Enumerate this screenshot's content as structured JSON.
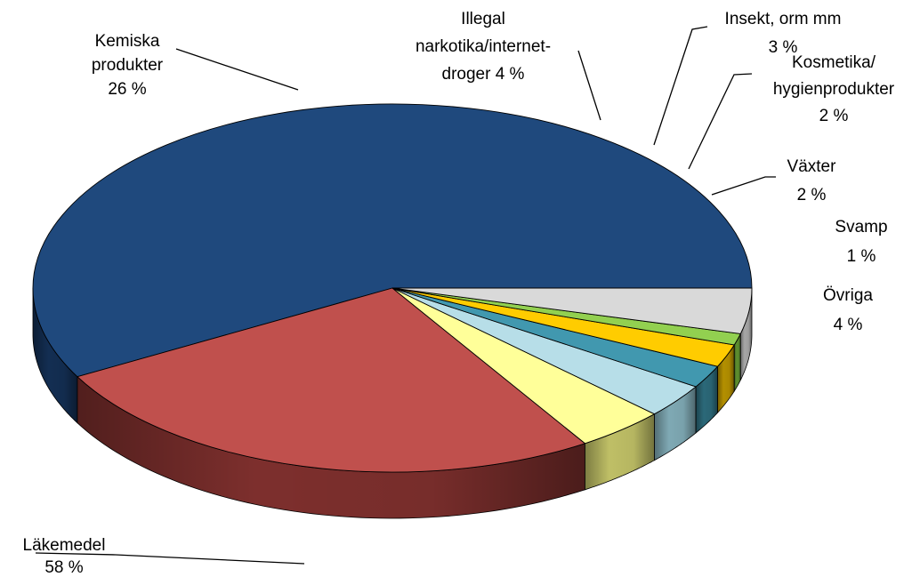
{
  "chart_data": {
    "type": "pie",
    "style": "3d",
    "start_angle": "3 o'clock",
    "direction": "counter-clockwise",
    "slices": [
      {
        "name": "Läkemedel",
        "value": 58,
        "value_label": "58 %",
        "color": "#1F497D",
        "side_color": "#132E52"
      },
      {
        "name": "Kemiska produkter",
        "value": 26,
        "value_label": "26 %",
        "color": "#C0504D",
        "side_color": "#7D2F2D"
      },
      {
        "name": "Illegal narkotika/internet-droger",
        "value": 4,
        "value_label": "4 %",
        "color": "#FFFF99",
        "side_color": "#BFBF66"
      },
      {
        "name": "Insekt, orm mm",
        "value": 3,
        "value_label": "3 %",
        "color": "#B7DEE8",
        "side_color": "#7FA9B4"
      },
      {
        "name": "Kosmetika/ hygienprodukter",
        "value": 2,
        "value_label": "2 %",
        "color": "#4198AF",
        "side_color": "#2B6878"
      },
      {
        "name": "Växter",
        "value": 2,
        "value_label": "2 %",
        "color": "#FFCC00",
        "side_color": "#B38F00"
      },
      {
        "name": "Svamp",
        "value": 1,
        "value_label": "1 %",
        "color": "#92D050",
        "side_color": "#5E8F2F"
      },
      {
        "name": "Övriga",
        "value": 4,
        "value_label": "4 %",
        "color": "#D9D9D9",
        "side_color": "#A6A6A6"
      }
    ]
  }
}
